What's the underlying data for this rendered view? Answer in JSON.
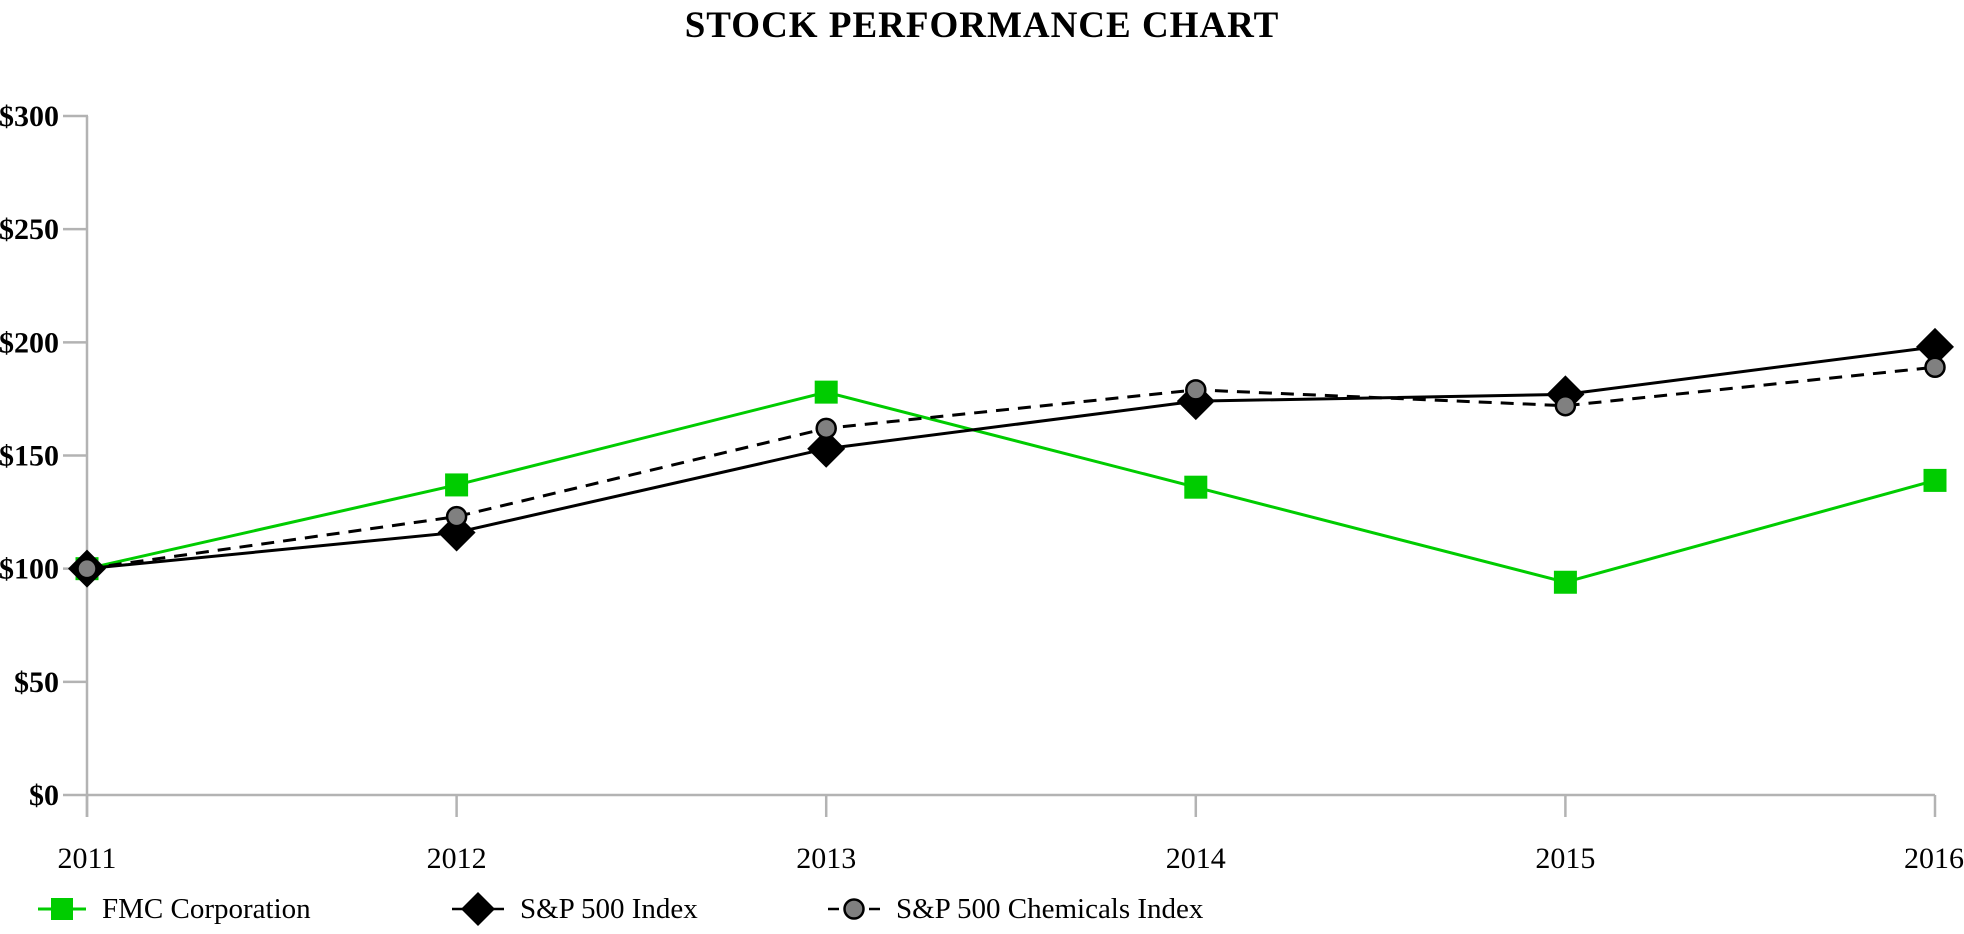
{
  "header": {
    "title": "STOCK PERFORMANCE CHART"
  },
  "chart_data": {
    "type": "line",
    "title": "STOCK PERFORMANCE CHART",
    "categories": [
      "2011",
      "2012",
      "2013",
      "2014",
      "2015",
      "2016"
    ],
    "y_ticks": [
      {
        "value": 0,
        "label": "$0"
      },
      {
        "value": 50,
        "label": "$50"
      },
      {
        "value": 100,
        "label": "$100"
      },
      {
        "value": 150,
        "label": "$150"
      },
      {
        "value": 200,
        "label": "$200"
      },
      {
        "value": 250,
        "label": "$250"
      },
      {
        "value": 300,
        "label": "$300"
      }
    ],
    "ylim": [
      0,
      300
    ],
    "xlabel": "",
    "ylabel": "",
    "grid": false,
    "legend_position": "bottom",
    "axis_color": "#B3B3B3",
    "series": [
      {
        "name": "FMC Corporation",
        "marker": "square",
        "line_style": "solid",
        "line_color": "#00CC00",
        "marker_fill": "#00CC00",
        "marker_stroke": "none",
        "values": [
          100,
          137,
          178,
          136,
          94,
          139
        ]
      },
      {
        "name": "S&P 500 Index",
        "marker": "diamond",
        "line_style": "solid",
        "line_color": "#000000",
        "marker_fill": "#000000",
        "marker_stroke": "none",
        "values": [
          100,
          116,
          153,
          174,
          177,
          198
        ]
      },
      {
        "name": "S&P 500 Chemicals Index",
        "marker": "circle",
        "line_style": "dashed",
        "line_color": "#000000",
        "marker_fill": "#808080",
        "marker_stroke": "#000000",
        "values": [
          100,
          123,
          162,
          179,
          172,
          189
        ]
      }
    ]
  }
}
